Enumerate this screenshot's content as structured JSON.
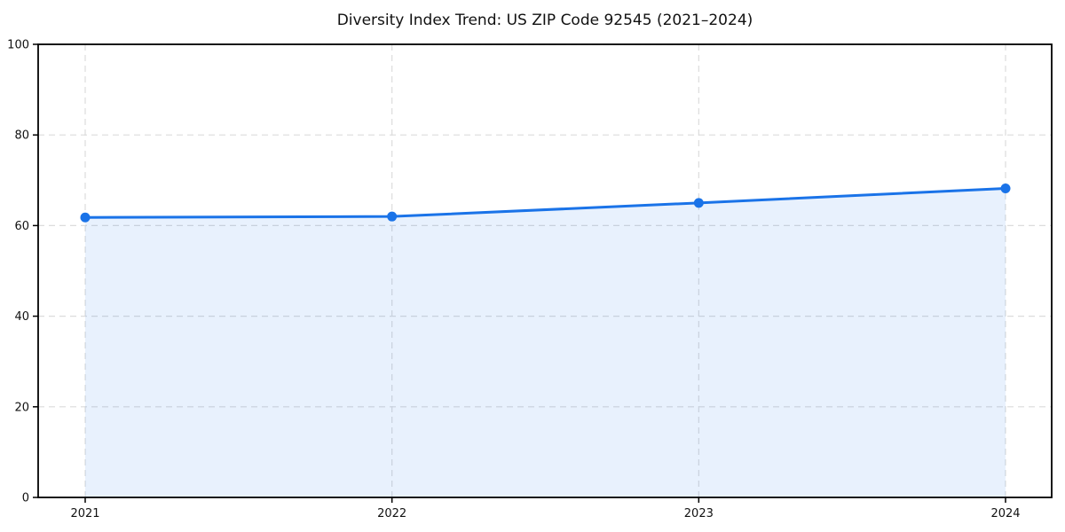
{
  "chart_data": {
    "type": "line",
    "title": "Diversity Index Trend: US ZIP Code 92545 (2021–2024)",
    "x": [
      "2021",
      "2022",
      "2023",
      "2024"
    ],
    "series": [
      {
        "name": "Diversity Index",
        "values": [
          61.8,
          62.0,
          65.0,
          68.2
        ]
      }
    ],
    "xlabel": "",
    "ylabel": "",
    "ylim": [
      0,
      100
    ],
    "yticks": [
      0,
      20,
      40,
      60,
      80,
      100
    ],
    "grid": true,
    "grid_style": "dashed",
    "legend_position": "none",
    "colors": {
      "line": "#1a73e8",
      "marker": "#1a73e8",
      "fill": "#1a73e8",
      "fill_opacity": 0.1,
      "grid": "#dcdcdc",
      "spine": "#000000",
      "text": "#111111",
      "background": "#ffffff"
    }
  }
}
